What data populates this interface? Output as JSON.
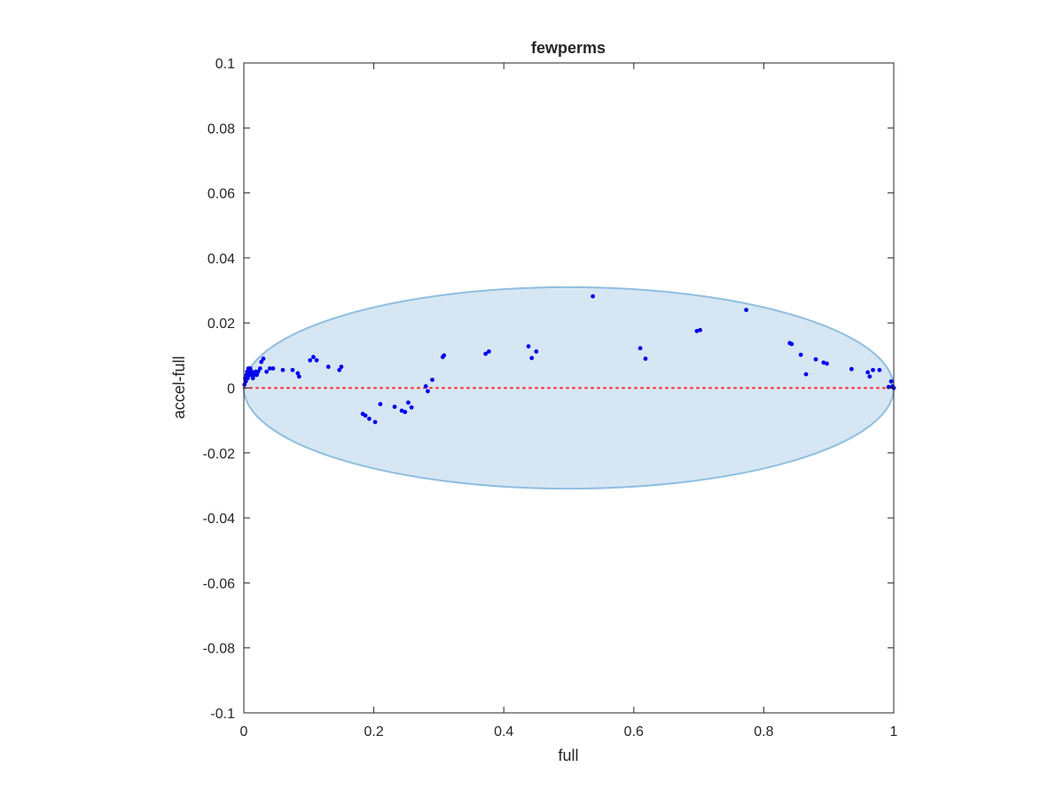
{
  "chart_data": {
    "type": "scatter",
    "title": "fewperms",
    "xlabel": "full",
    "ylabel": "accel-full",
    "xlim": [
      0,
      1
    ],
    "ylim": [
      -0.1,
      0.1
    ],
    "xticks": [
      "0",
      "0.2",
      "0.4",
      "0.6",
      "0.8",
      "1"
    ],
    "yticks": [
      "0.1",
      "0.08",
      "0.06",
      "0.04",
      "0.02",
      "0",
      "-0.02",
      "-0.04",
      "-0.06",
      "-0.08",
      "-0.1"
    ],
    "grid": false,
    "ellipse": {
      "center_x": 0.5,
      "center_y": 0,
      "radius_x": 0.5,
      "radius_y": 0.031,
      "fill": "#d6e6f3",
      "stroke": "#8fbfe0"
    },
    "reference_line": {
      "y": 0,
      "x_from": 0,
      "x_to": 1,
      "color": "#ff2a2a",
      "style": "dotted"
    },
    "marker_color": "#0000ee",
    "points": [
      {
        "x": 0.001,
        "y": 0.001
      },
      {
        "x": 0.002,
        "y": 0.003
      },
      {
        "x": 0.003,
        "y": 0.002
      },
      {
        "x": 0.004,
        "y": 0.004
      },
      {
        "x": 0.005,
        "y": 0.005
      },
      {
        "x": 0.006,
        "y": 0.003
      },
      {
        "x": 0.007,
        "y": 0.006
      },
      {
        "x": 0.008,
        "y": 0.004
      },
      {
        "x": 0.009,
        "y": 0.005
      },
      {
        "x": 0.01,
        "y": 0.006
      },
      {
        "x": 0.011,
        "y": 0.004
      },
      {
        "x": 0.012,
        "y": 0.005
      },
      {
        "x": 0.014,
        "y": 0.003
      },
      {
        "x": 0.016,
        "y": 0.004
      },
      {
        "x": 0.018,
        "y": 0.005
      },
      {
        "x": 0.02,
        "y": 0.004
      },
      {
        "x": 0.022,
        "y": 0.005
      },
      {
        "x": 0.025,
        "y": 0.006
      },
      {
        "x": 0.027,
        "y": 0.008
      },
      {
        "x": 0.03,
        "y": 0.009
      },
      {
        "x": 0.035,
        "y": 0.005
      },
      {
        "x": 0.04,
        "y": 0.006
      },
      {
        "x": 0.045,
        "y": 0.006
      },
      {
        "x": 0.06,
        "y": 0.0055
      },
      {
        "x": 0.075,
        "y": 0.0055
      },
      {
        "x": 0.083,
        "y": 0.0045
      },
      {
        "x": 0.085,
        "y": 0.0035
      },
      {
        "x": 0.102,
        "y": 0.0085
      },
      {
        "x": 0.107,
        "y": 0.0095
      },
      {
        "x": 0.112,
        "y": 0.0085
      },
      {
        "x": 0.13,
        "y": 0.0065
      },
      {
        "x": 0.147,
        "y": 0.0055
      },
      {
        "x": 0.15,
        "y": 0.0065
      },
      {
        "x": 0.183,
        "y": -0.008
      },
      {
        "x": 0.187,
        "y": -0.0085
      },
      {
        "x": 0.193,
        "y": -0.0095
      },
      {
        "x": 0.202,
        "y": -0.0105
      },
      {
        "x": 0.21,
        "y": -0.005
      },
      {
        "x": 0.232,
        "y": -0.0058
      },
      {
        "x": 0.243,
        "y": -0.007
      },
      {
        "x": 0.248,
        "y": -0.0074
      },
      {
        "x": 0.253,
        "y": -0.0045
      },
      {
        "x": 0.258,
        "y": -0.006
      },
      {
        "x": 0.28,
        "y": 0.0005
      },
      {
        "x": 0.283,
        "y": -0.001
      },
      {
        "x": 0.29,
        "y": 0.0025
      },
      {
        "x": 0.306,
        "y": 0.0095
      },
      {
        "x": 0.308,
        "y": 0.01
      },
      {
        "x": 0.372,
        "y": 0.0105
      },
      {
        "x": 0.377,
        "y": 0.0112
      },
      {
        "x": 0.438,
        "y": 0.0128
      },
      {
        "x": 0.443,
        "y": 0.0092
      },
      {
        "x": 0.45,
        "y": 0.0112
      },
      {
        "x": 0.537,
        "y": 0.0282
      },
      {
        "x": 0.61,
        "y": 0.0122
      },
      {
        "x": 0.618,
        "y": 0.009
      },
      {
        "x": 0.697,
        "y": 0.0175
      },
      {
        "x": 0.702,
        "y": 0.0178
      },
      {
        "x": 0.773,
        "y": 0.024
      },
      {
        "x": 0.84,
        "y": 0.0138
      },
      {
        "x": 0.843,
        "y": 0.0135
      },
      {
        "x": 0.857,
        "y": 0.0102
      },
      {
        "x": 0.865,
        "y": 0.0042
      },
      {
        "x": 0.88,
        "y": 0.0088
      },
      {
        "x": 0.892,
        "y": 0.0078
      },
      {
        "x": 0.897,
        "y": 0.0075
      },
      {
        "x": 0.935,
        "y": 0.0058
      },
      {
        "x": 0.96,
        "y": 0.0048
      },
      {
        "x": 0.963,
        "y": 0.0035
      },
      {
        "x": 0.968,
        "y": 0.0055
      },
      {
        "x": 0.978,
        "y": 0.0055
      },
      {
        "x": 0.992,
        "y": 0.0003
      },
      {
        "x": 0.996,
        "y": 0.002
      },
      {
        "x": 0.998,
        "y": 0.0005
      },
      {
        "x": 1.0,
        "y": 0.0
      }
    ]
  }
}
